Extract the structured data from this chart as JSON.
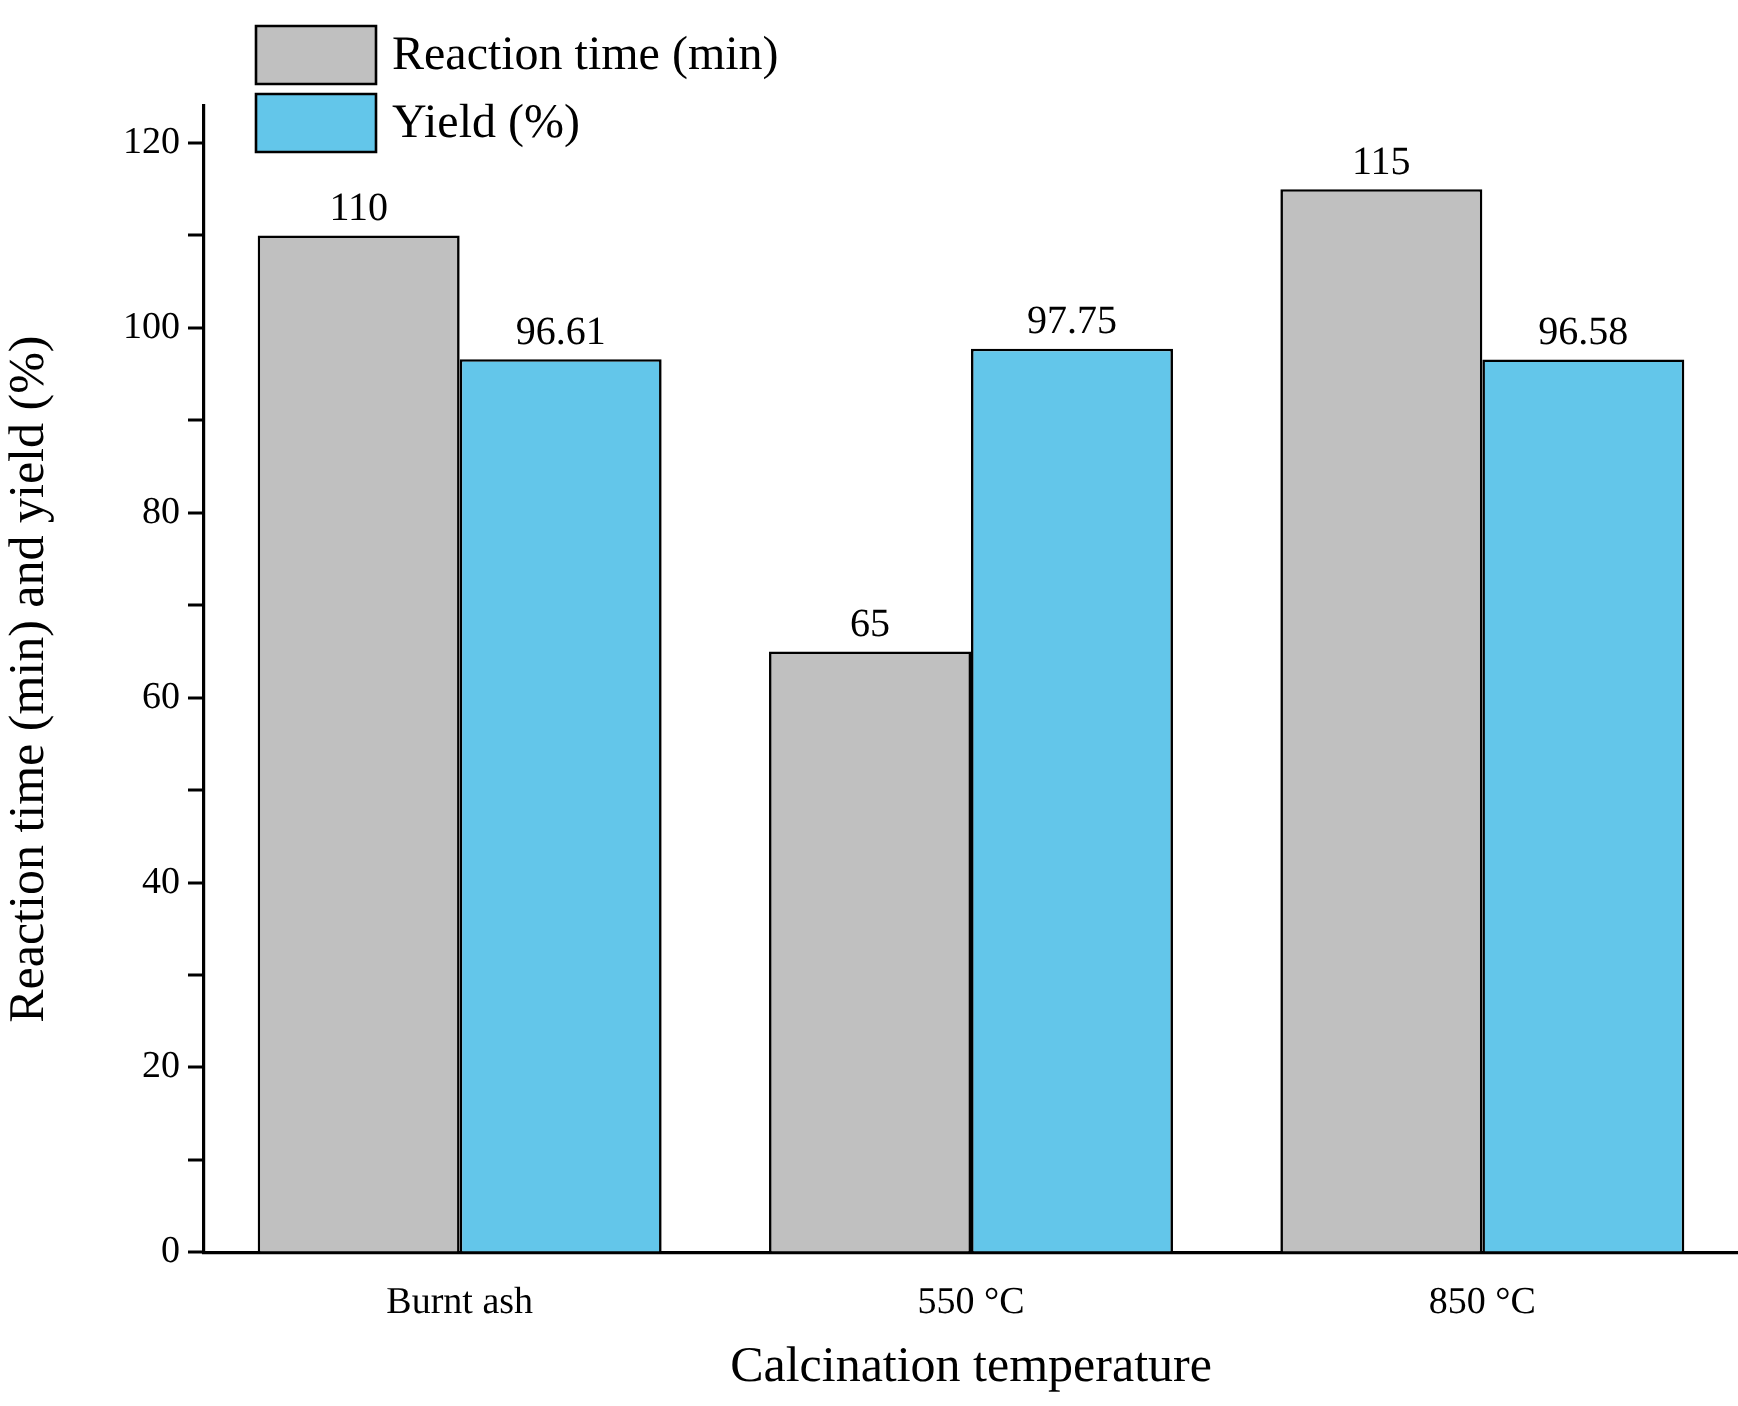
{
  "chart_data": {
    "type": "bar",
    "xlabel": "Calcination temperature",
    "ylabel": "Reaction time (min) and yield (%)",
    "categories": [
      "Burnt ash",
      "550 °C",
      "850 °C"
    ],
    "series": [
      {
        "name": "Reaction time (min)",
        "color": "#c0c0c0",
        "values": [
          110,
          65,
          115
        ]
      },
      {
        "name": "Yield (%)",
        "color": "#63c6ea",
        "values": [
          96.61,
          97.75,
          96.58
        ]
      }
    ],
    "ylim": [
      0,
      124
    ],
    "yticks": [
      0,
      {
        "value": 10,
        "label": null
      },
      20,
      {
        "value": 30,
        "label": null
      },
      40,
      {
        "value": 50,
        "label": null
      },
      60,
      {
        "value": 70,
        "label": null
      },
      80,
      {
        "value": 90,
        "label": null
      },
      100,
      {
        "value": 110,
        "label": null
      },
      120
    ],
    "grid": false,
    "legend": "top left",
    "data_labels": true
  }
}
